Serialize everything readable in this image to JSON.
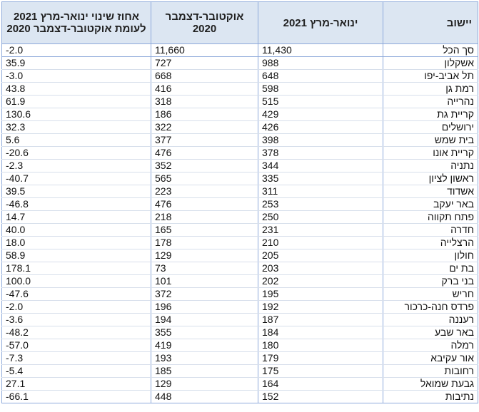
{
  "table": {
    "headers": {
      "settlement": "יישוב",
      "jan_mar_2021": "ינואר-מרץ 2021",
      "oct_dec_2020": "אוקטובר-דצמבר 2020",
      "pct_change": "אחוז שינוי ינואר-מרץ 2021 לעומת אוקטובר-דצמבר 2020"
    },
    "rows": [
      {
        "settlement": "סך הכל",
        "jan_mar_2021": "11,430",
        "oct_dec_2020": "11,660",
        "pct_change": "-2.0"
      },
      {
        "settlement": "אשקלון",
        "jan_mar_2021": "988",
        "oct_dec_2020": "727",
        "pct_change": "35.9"
      },
      {
        "settlement": "תל אביב-יפו",
        "jan_mar_2021": "648",
        "oct_dec_2020": "668",
        "pct_change": "-3.0"
      },
      {
        "settlement": "רמת גן",
        "jan_mar_2021": "598",
        "oct_dec_2020": "416",
        "pct_change": "43.8"
      },
      {
        "settlement": "נהרייה",
        "jan_mar_2021": "515",
        "oct_dec_2020": "318",
        "pct_change": "61.9"
      },
      {
        "settlement": "קריית גת",
        "jan_mar_2021": "429",
        "oct_dec_2020": "186",
        "pct_change": "130.6"
      },
      {
        "settlement": "ירושלים",
        "jan_mar_2021": "426",
        "oct_dec_2020": "322",
        "pct_change": "32.3"
      },
      {
        "settlement": "בית שמש",
        "jan_mar_2021": "398",
        "oct_dec_2020": "377",
        "pct_change": "5.6"
      },
      {
        "settlement": "קריית אונו",
        "jan_mar_2021": "378",
        "oct_dec_2020": "476",
        "pct_change": "-20.6"
      },
      {
        "settlement": "נתניה",
        "jan_mar_2021": "344",
        "oct_dec_2020": "352",
        "pct_change": "-2.3"
      },
      {
        "settlement": "ראשון לציון",
        "jan_mar_2021": "335",
        "oct_dec_2020": "565",
        "pct_change": "-40.7"
      },
      {
        "settlement": "אשדוד",
        "jan_mar_2021": "311",
        "oct_dec_2020": "223",
        "pct_change": "39.5"
      },
      {
        "settlement": "באר יעקב",
        "jan_mar_2021": "253",
        "oct_dec_2020": "476",
        "pct_change": "-46.8"
      },
      {
        "settlement": "פתח תקווה",
        "jan_mar_2021": "250",
        "oct_dec_2020": "218",
        "pct_change": "14.7"
      },
      {
        "settlement": "חדרה",
        "jan_mar_2021": "231",
        "oct_dec_2020": "165",
        "pct_change": "40.0"
      },
      {
        "settlement": "הרצלייה",
        "jan_mar_2021": "210",
        "oct_dec_2020": "178",
        "pct_change": "18.0"
      },
      {
        "settlement": "חולון",
        "jan_mar_2021": "205",
        "oct_dec_2020": "129",
        "pct_change": "58.9"
      },
      {
        "settlement": "בת ים",
        "jan_mar_2021": "203",
        "oct_dec_2020": "73",
        "pct_change": "178.1"
      },
      {
        "settlement": "בני ברק",
        "jan_mar_2021": "202",
        "oct_dec_2020": "101",
        "pct_change": "100.0"
      },
      {
        "settlement": "חריש",
        "jan_mar_2021": "195",
        "oct_dec_2020": "372",
        "pct_change": "-47.6"
      },
      {
        "settlement": "פרדס חנה-כרכור",
        "jan_mar_2021": "192",
        "oct_dec_2020": "196",
        "pct_change": "-2.0"
      },
      {
        "settlement": "רעננה",
        "jan_mar_2021": "187",
        "oct_dec_2020": "194",
        "pct_change": "-3.6"
      },
      {
        "settlement": "באר שבע",
        "jan_mar_2021": "184",
        "oct_dec_2020": "355",
        "pct_change": "-48.2"
      },
      {
        "settlement": "רמלה",
        "jan_mar_2021": "180",
        "oct_dec_2020": "419",
        "pct_change": "-57.0"
      },
      {
        "settlement": "אור עקיבא",
        "jan_mar_2021": "179",
        "oct_dec_2020": "193",
        "pct_change": "-7.3"
      },
      {
        "settlement": "רחובות",
        "jan_mar_2021": "175",
        "oct_dec_2020": "185",
        "pct_change": "-5.4"
      },
      {
        "settlement": "גבעת שמואל",
        "jan_mar_2021": "164",
        "oct_dec_2020": "129",
        "pct_change": "27.1"
      },
      {
        "settlement": "נתיבות",
        "jan_mar_2021": "152",
        "oct_dec_2020": "448",
        "pct_change": "-66.1"
      }
    ]
  }
}
